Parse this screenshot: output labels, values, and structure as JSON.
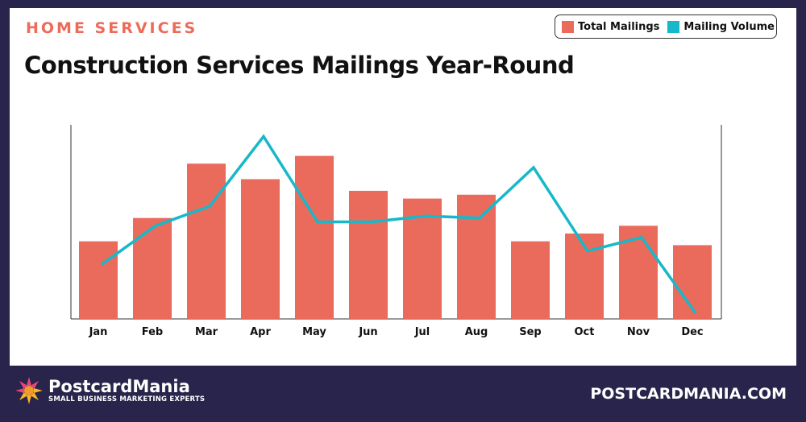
{
  "header": {
    "kicker": "HOME SERVICES",
    "title": "Construction Services Mailings Year-Round"
  },
  "legend": [
    {
      "label": "Total Mailings",
      "color": "#ea6b5c"
    },
    {
      "label": "Mailing Volume",
      "color": "#17b8c9"
    }
  ],
  "footer": {
    "brand": "PostcardMania",
    "tagline": "SMALL BUSINESS MARKETING EXPERTS",
    "url": "POSTCARDMANIA.COM"
  },
  "chart_data": {
    "type": "bar",
    "categories": [
      "Jan",
      "Feb",
      "Mar",
      "Apr",
      "May",
      "Jun",
      "Jul",
      "Aug",
      "Sep",
      "Oct",
      "Nov",
      "Dec"
    ],
    "series": [
      {
        "name": "Total Mailings",
        "type": "bar",
        "color": "#ea6b5c",
        "values": [
          40,
          52,
          80,
          72,
          84,
          66,
          62,
          64,
          40,
          44,
          48,
          38
        ]
      },
      {
        "name": "Mailing Volume",
        "type": "line",
        "color": "#17b8c9",
        "values": [
          28,
          48,
          58,
          94,
          50,
          50,
          53,
          52,
          78,
          35,
          42,
          3
        ]
      }
    ],
    "ylim": [
      0,
      100
    ],
    "grid": false,
    "legend_position": "top-right"
  }
}
